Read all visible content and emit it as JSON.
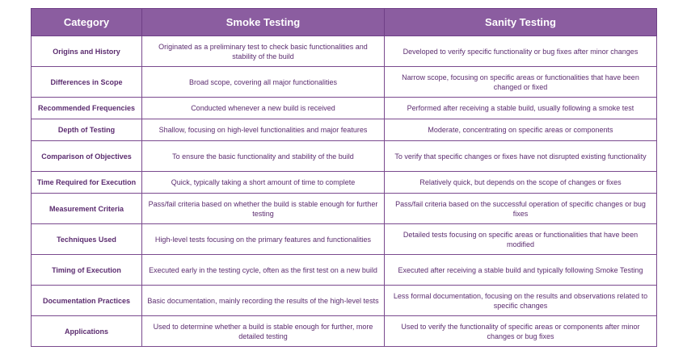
{
  "table": {
    "headers": [
      "Category",
      "Smoke Testing",
      "Sanity Testing"
    ],
    "rows": [
      {
        "category": "Origins and History",
        "smoke": "Originated as a preliminary test to check basic functionalities and stability of the build",
        "sanity": "Developed to verify specific functionality or bug fixes after minor changes"
      },
      {
        "category": "Differences in Scope",
        "smoke": "Broad scope, covering all major functionalities",
        "sanity": "Narrow scope, focusing on specific areas or functionalities that have been changed or fixed"
      },
      {
        "category": "Recommended Frequencies",
        "smoke": "Conducted whenever a new build is received",
        "sanity": "Performed after receiving a stable build, usually following a smoke test"
      },
      {
        "category": "Depth of Testing",
        "smoke": "Shallow, focusing on high-level functionalities and major features",
        "sanity": "Moderate, concentrating on specific areas or components"
      },
      {
        "category": "Comparison of Objectives",
        "smoke": "To ensure the basic functionality and stability of the build",
        "sanity": "To verify that specific changes or fixes have not disrupted existing functionality"
      },
      {
        "category": "Time Required for Execution",
        "smoke": "Quick, typically taking a short amount of time to complete",
        "sanity": "Relatively quick, but depends on the scope of changes or fixes"
      },
      {
        "category": "Measurement Criteria",
        "smoke": "Pass/fail criteria based on whether the build is stable enough for further testing",
        "sanity": "Pass/fail criteria based on the successful operation of specific changes or bug fixes"
      },
      {
        "category": "Techniques Used",
        "smoke": "High-level tests focusing on the primary features and functionalities",
        "sanity": "Detailed tests focusing on specific areas or functionalities that have been modified"
      },
      {
        "category": "Timing of Execution",
        "smoke": "Executed early in the testing cycle, often as the first test on a new build",
        "sanity": "Executed after receiving a stable build and typically following Smoke Testing"
      },
      {
        "category": "Documentation Practices",
        "smoke": "Basic documentation, mainly recording the results of the high-level tests",
        "sanity": "Less formal documentation, focusing on the results and observations related to specific changes"
      },
      {
        "category": "Applications",
        "smoke": "Used to determine whether a build is stable enough for further, more detailed testing",
        "sanity": "Used to verify the functionality of specific areas or components after minor changes or bug fixes"
      }
    ]
  }
}
